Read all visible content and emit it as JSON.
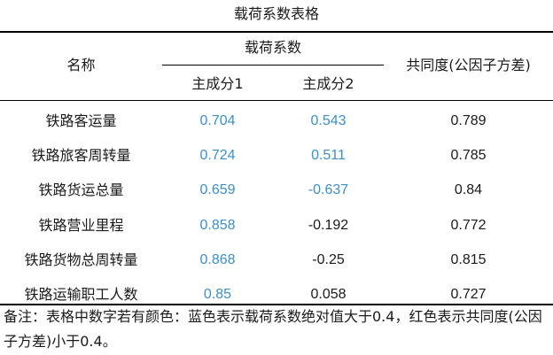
{
  "title": "载荷系数表格",
  "header": {
    "name_col": "名称",
    "loading_group": "载荷系数",
    "pc1": "主成分1",
    "pc2": "主成分2",
    "communality": "共同度(公因子方差)"
  },
  "colors": {
    "highlight_blue": "#3a8fd0",
    "text": "#1a1a1a"
  },
  "rows": [
    {
      "name": "铁路客运量",
      "pc1": "0.704",
      "pc2": "0.543",
      "comm": "0.789"
    },
    {
      "name": "铁路旅客周转量",
      "pc1": "0.724",
      "pc2": "0.511",
      "comm": "0.785"
    },
    {
      "name": "铁路货运总量",
      "pc1": "0.659",
      "pc2": "-0.637",
      "comm": "0.84"
    },
    {
      "name": "铁路营业里程",
      "pc1": "0.858",
      "pc2": "-0.192",
      "comm": "0.772"
    },
    {
      "name": "铁路货物总周转量",
      "pc1": "0.868",
      "pc2": "-0.25",
      "comm": "0.815"
    },
    {
      "name": "铁路运输职工人数",
      "pc1": "0.85",
      "pc2": "0.058",
      "comm": "0.727"
    }
  ],
  "highlights": {
    "pc1": [
      true,
      true,
      true,
      true,
      true,
      true
    ],
    "pc2": [
      true,
      true,
      true,
      false,
      false,
      false
    ]
  },
  "note": "备注：表格中数字若有颜色：蓝色表示载荷系数绝对值大于0.4，红色表示共同度(公因子方差)小于0.4。"
}
